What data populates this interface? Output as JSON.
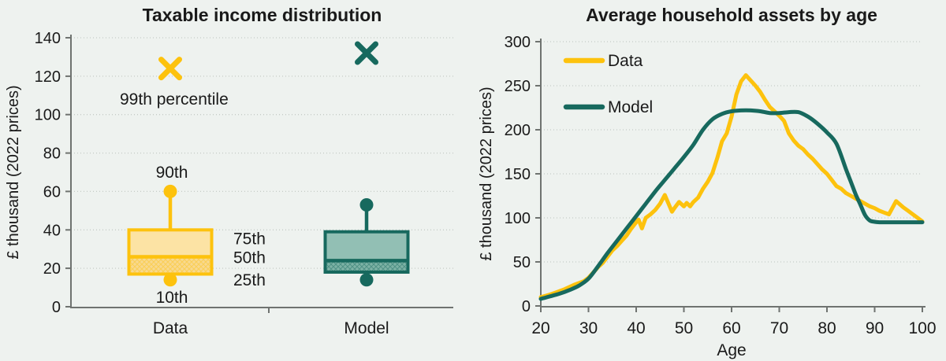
{
  "figure": {
    "background": "#eef2ef",
    "text_color": "#1a1a1a",
    "axis_color": "#6f7370",
    "grid_color": "#c5cbc6",
    "accent_yellow": "#fdc20d",
    "accent_teal": "#17695e"
  },
  "chart_data": [
    {
      "type": "boxplot",
      "title": "Taxable income distribution",
      "ylabel": "£ thousand (2022 prices)",
      "ylim": [
        0,
        140
      ],
      "ytick_step": 20,
      "grid": true,
      "categories": [
        "Data",
        "Model"
      ],
      "series": [
        {
          "name": "Data",
          "color": "#fdc20d",
          "box_fill": "#fce3a4",
          "hatch_fill": "#f8d98f",
          "percentiles": {
            "p10": 14,
            "p25": 17,
            "p50": 26,
            "p75": 40,
            "p90": 60,
            "p99": 124
          }
        },
        {
          "name": "Model",
          "color": "#17695e",
          "box_fill": "#92bfb4",
          "hatch_fill": "#7db2a5",
          "percentiles": {
            "p10": 14,
            "p25": 18,
            "p50": 24,
            "p75": 39,
            "p90": 53,
            "p99": 132
          }
        }
      ],
      "annotations": [
        {
          "text": "99th percentile",
          "cat": 0,
          "value": 108,
          "dx": -64,
          "anchor": "start"
        },
        {
          "text": "90th",
          "cat": 0,
          "value": 70,
          "dx": 2,
          "anchor": "middle"
        },
        {
          "text": "75th",
          "cat": 0,
          "value": 35.5,
          "dx": 80,
          "anchor": "start"
        },
        {
          "text": "50th",
          "cat": 0,
          "value": 25.5,
          "dx": 80,
          "anchor": "start"
        },
        {
          "text": "25th",
          "cat": 0,
          "value": 14,
          "dx": 80,
          "anchor": "start"
        },
        {
          "text": "10th",
          "cat": 0,
          "value": 5,
          "dx": 2,
          "anchor": "middle"
        }
      ]
    },
    {
      "type": "line",
      "title": "Average household assets by age",
      "xlabel": "Age",
      "ylabel": "£ thousand (2022 prices)",
      "xlim": [
        20,
        100
      ],
      "xtick_step": 10,
      "ylim": [
        0,
        300
      ],
      "ytick_step": 50,
      "grid": true,
      "legend": {
        "position": "top-left"
      },
      "series": [
        {
          "name": "Data",
          "color": "#fdc20d",
          "smooth": false,
          "points": [
            [
              20,
              10
            ],
            [
              21,
              11.5
            ],
            [
              22,
              13
            ],
            [
              23,
              15
            ],
            [
              24,
              17
            ],
            [
              25,
              19
            ],
            [
              26,
              21.5
            ],
            [
              27,
              24
            ],
            [
              28,
              26
            ],
            [
              29,
              28
            ],
            [
              30,
              32
            ],
            [
              31,
              38
            ],
            [
              32,
              44
            ],
            [
              33,
              49
            ],
            [
              34,
              56
            ],
            [
              35,
              63
            ],
            [
              36,
              68
            ],
            [
              37,
              74
            ],
            [
              38,
              80
            ],
            [
              39,
              88
            ],
            [
              40,
              95
            ],
            [
              40.5,
              98
            ],
            [
              41.2,
              88
            ],
            [
              42,
              100
            ],
            [
              43,
              104
            ],
            [
              44,
              109
            ],
            [
              45,
              116
            ],
            [
              46,
              126
            ],
            [
              47.5,
              107
            ],
            [
              48,
              111
            ],
            [
              49,
              118
            ],
            [
              50,
              113
            ],
            [
              50.6,
              117
            ],
            [
              51.3,
              113
            ],
            [
              52,
              118
            ],
            [
              53,
              123
            ],
            [
              54,
              133
            ],
            [
              55,
              141
            ],
            [
              56,
              151
            ],
            [
              57,
              168
            ],
            [
              58,
              187
            ],
            [
              59,
              196
            ],
            [
              60,
              215
            ],
            [
              61,
              240
            ],
            [
              62,
              255
            ],
            [
              63,
              262
            ],
            [
              64,
              256
            ],
            [
              65,
              250
            ],
            [
              66,
              243
            ],
            [
              67,
              234
            ],
            [
              68,
              226
            ],
            [
              69,
              221
            ],
            [
              70,
              216
            ],
            [
              71,
              210
            ],
            [
              72,
              196
            ],
            [
              73,
              188
            ],
            [
              74,
              182
            ],
            [
              75,
              178
            ],
            [
              76,
              172
            ],
            [
              77,
              167
            ],
            [
              78,
              161
            ],
            [
              79,
              155
            ],
            [
              80,
              150
            ],
            [
              81,
              143
            ],
            [
              82,
              136
            ],
            [
              83,
              133
            ],
            [
              84,
              128
            ],
            [
              85,
              125
            ],
            [
              86,
              122
            ],
            [
              87,
              119
            ],
            [
              88,
              116
            ],
            [
              89,
              113
            ],
            [
              90,
              111
            ],
            [
              91,
              108
            ],
            [
              92,
              106
            ],
            [
              93,
              104
            ],
            [
              94.5,
              119
            ],
            [
              96,
              112
            ],
            [
              97,
              108
            ],
            [
              98,
              104
            ],
            [
              99,
              100
            ],
            [
              100,
              96
            ]
          ]
        },
        {
          "name": "Model",
          "color": "#17695e",
          "smooth": true,
          "points": [
            [
              20,
              8
            ],
            [
              21,
              9.5
            ],
            [
              22,
              11
            ],
            [
              24,
              14
            ],
            [
              26,
              18
            ],
            [
              28,
              23
            ],
            [
              30,
              31
            ],
            [
              32,
              45
            ],
            [
              34,
              60
            ],
            [
              36,
              74
            ],
            [
              38,
              88
            ],
            [
              40,
              102
            ],
            [
              42,
              116
            ],
            [
              44,
              130
            ],
            [
              46,
              143
            ],
            [
              48,
              156
            ],
            [
              50,
              169
            ],
            [
              52,
              183
            ],
            [
              54,
              200
            ],
            [
              56,
              212
            ],
            [
              58,
              218
            ],
            [
              60,
              221
            ],
            [
              62,
              222
            ],
            [
              64,
              222
            ],
            [
              66,
              221
            ],
            [
              68,
              219
            ],
            [
              70,
              219
            ],
            [
              72,
              220
            ],
            [
              74,
              220
            ],
            [
              76,
              215
            ],
            [
              78,
              207
            ],
            [
              80,
              197
            ],
            [
              82,
              184
            ],
            [
              84,
              155
            ],
            [
              85,
              141
            ],
            [
              86,
              127
            ],
            [
              87,
              115
            ],
            [
              88,
              103
            ],
            [
              89,
              97
            ],
            [
              90,
              95.5
            ],
            [
              91,
              95
            ],
            [
              93,
              95
            ],
            [
              96,
              95
            ],
            [
              100,
              95
            ]
          ]
        }
      ]
    }
  ]
}
